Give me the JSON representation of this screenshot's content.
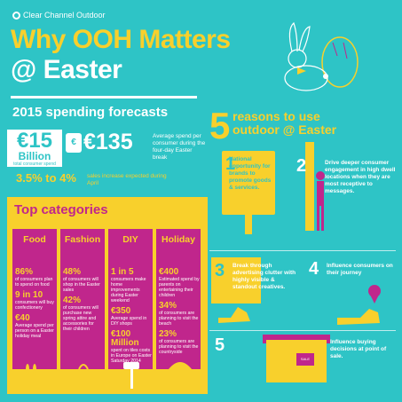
{
  "brand": {
    "name": "Clear Channel Outdoor"
  },
  "header": {
    "title_line1": "Why OOH Matters",
    "title_line2": "@ Easter"
  },
  "forecasts": {
    "title": "2015 spending forecasts",
    "total_value": "€15",
    "total_unit": "Billion",
    "total_label": "total consumer spend",
    "avg_value": "€135",
    "avg_label": "Average spend per consumer during the four-day Easter break",
    "increase_value": "3.5% to 4%",
    "increase_label": "sales increase expected during April"
  },
  "categories": {
    "title": "Top categories",
    "items": [
      {
        "name": "Food",
        "stats": [
          {
            "value": "86%",
            "label": "of consumers plan to spend on food"
          },
          {
            "value": "9 in 10",
            "label": "consumers will buy confectionery"
          },
          {
            "value": "€40",
            "label": "Average spend per person on a Easter holiday meal"
          }
        ]
      },
      {
        "name": "Fashion",
        "stats": [
          {
            "value": "48%",
            "label": "of consumers will shop in the Easter sales"
          },
          {
            "value": "42%",
            "label": "of consumers will purchase new spring attire and accessories for their children"
          }
        ]
      },
      {
        "name": "DIY",
        "stats": [
          {
            "value": "1 in 5",
            "label": "consumers make home improvements during Easter weekend"
          },
          {
            "value": "€350",
            "label": "Average spend in DIY shops"
          },
          {
            "value": "€100 Million",
            "label": "spent on tiles costs in Europe on Easter Saturday 2014"
          }
        ]
      },
      {
        "name": "Holiday",
        "stats": [
          {
            "value": "€400",
            "label": "Estimated spend by parents on entertaining their children"
          },
          {
            "value": "34%",
            "label": "of consumers are planning to visit the beach"
          },
          {
            "value": "23%",
            "label": "of consumers are planning to visit the countryside"
          }
        ]
      }
    ]
  },
  "reasons": {
    "number": "5",
    "title": "reasons to use outdoor @ Easter",
    "items": [
      {
        "num": "1",
        "text": "National opportunity for brands to promote goods & services."
      },
      {
        "num": "2",
        "text": "Drive deeper consumer engagement in high dwell locations when they are most receptive to messages."
      },
      {
        "num": "3",
        "text": "Break through advertising clutter with highly visible & standout creatives."
      },
      {
        "num": "4",
        "text": "Influence consumers on their journey"
      },
      {
        "num": "5",
        "text": "Influence buying decisions at point of sale."
      }
    ]
  },
  "icons": {
    "sale_tag": "SALE"
  },
  "colors": {
    "background": "#2ec4c6",
    "yellow": "#f8d02c",
    "magenta": "#c0268c",
    "white": "#ffffff"
  }
}
